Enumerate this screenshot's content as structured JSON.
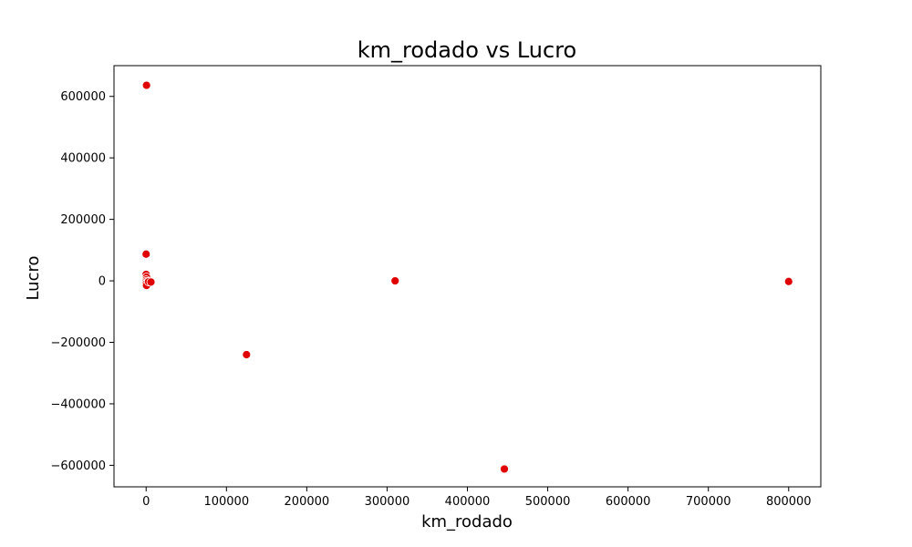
{
  "chart_data": {
    "type": "scatter",
    "title": "km_rodado vs Lucro",
    "xlabel": "km_rodado",
    "ylabel": "Lucro",
    "xlim": [
      -40000,
      840000
    ],
    "ylim": [
      -670000,
      700000
    ],
    "x_ticks": [
      0,
      100000,
      200000,
      300000,
      400000,
      500000,
      600000,
      700000,
      800000
    ],
    "x_tick_labels": [
      "0",
      "100000",
      "200000",
      "300000",
      "400000",
      "500000",
      "600000",
      "700000",
      "800000"
    ],
    "y_ticks": [
      -600000,
      -400000,
      -200000,
      0,
      200000,
      400000,
      600000
    ],
    "y_tick_labels": [
      "−600000",
      "−400000",
      "−200000",
      "0",
      "200000",
      "400000",
      "600000"
    ],
    "grid": false,
    "marker_color": "#e00000",
    "marker_edge_color": "#ffffff",
    "points": [
      {
        "x": 500,
        "y": 636000
      },
      {
        "x": 0,
        "y": 87000
      },
      {
        "x": 0,
        "y": 21000
      },
      {
        "x": 500,
        "y": 12000
      },
      {
        "x": 0,
        "y": 3000
      },
      {
        "x": 0,
        "y": -2000
      },
      {
        "x": 1000,
        "y": -5000
      },
      {
        "x": 0,
        "y": -10000
      },
      {
        "x": 500,
        "y": -15000
      },
      {
        "x": 3000,
        "y": -3000
      },
      {
        "x": 6000,
        "y": -4000
      },
      {
        "x": 310000,
        "y": 0
      },
      {
        "x": 800000,
        "y": -2000
      },
      {
        "x": 125000,
        "y": -240000
      },
      {
        "x": 446000,
        "y": -612000
      }
    ]
  }
}
